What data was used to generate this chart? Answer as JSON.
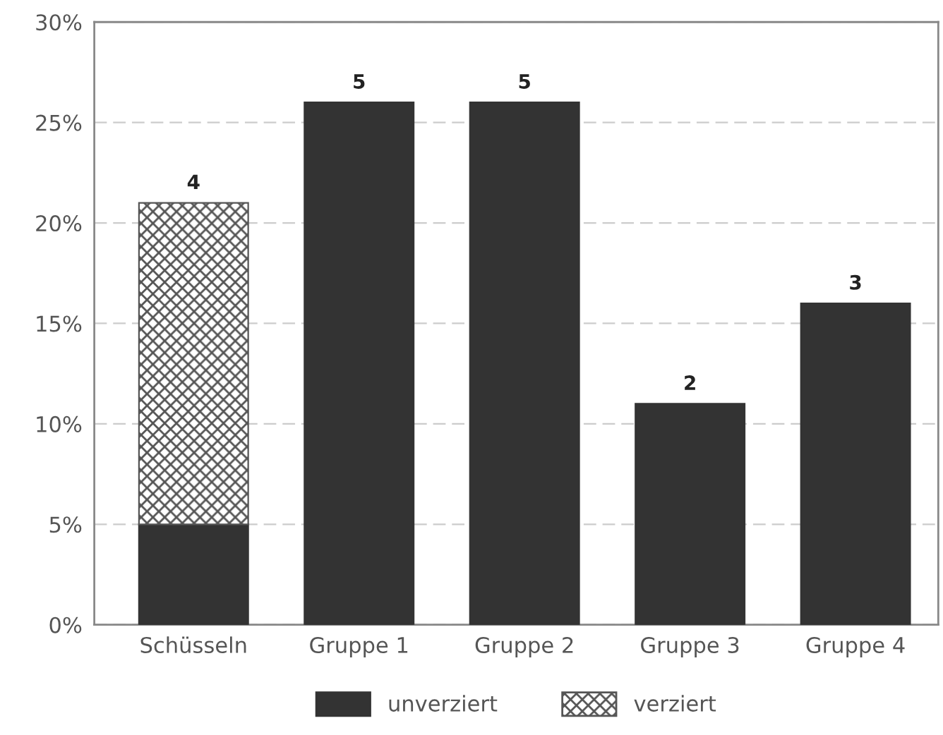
{
  "chart_data": {
    "type": "bar",
    "stacked": true,
    "categories": [
      "Schüsseln",
      "Gruppe 1",
      "Gruppe 2",
      "Gruppe 3",
      "Gruppe 4"
    ],
    "series": [
      {
        "name": "unverziert",
        "color": "#333333",
        "values": [
          5,
          26,
          26,
          11,
          16
        ]
      },
      {
        "name": "verziert",
        "color": "#555555",
        "values": [
          16,
          null,
          null,
          null,
          null
        ]
      }
    ],
    "annotations": [
      {
        "text": "4",
        "x": "Schüsseln",
        "y": 21
      },
      {
        "text": "5",
        "x": "Gruppe 1",
        "y": 26
      },
      {
        "text": "5",
        "x": "Gruppe 2",
        "y": 26
      },
      {
        "text": "2",
        "x": "Gruppe 3",
        "y": 11
      },
      {
        "text": "3",
        "x": "Gruppe 4",
        "y": 16
      }
    ],
    "ylim": [
      0,
      30
    ],
    "yticks": [
      {
        "value": 0,
        "label": "0%"
      },
      {
        "value": 5,
        "label": "5%"
      },
      {
        "value": 10,
        "label": "10%"
      },
      {
        "value": 15,
        "label": "15%"
      },
      {
        "value": 20,
        "label": "20%"
      },
      {
        "value": 25,
        "label": "25%"
      },
      {
        "value": 30,
        "label": "30%"
      }
    ],
    "grid": "y",
    "legend": "bottom"
  }
}
